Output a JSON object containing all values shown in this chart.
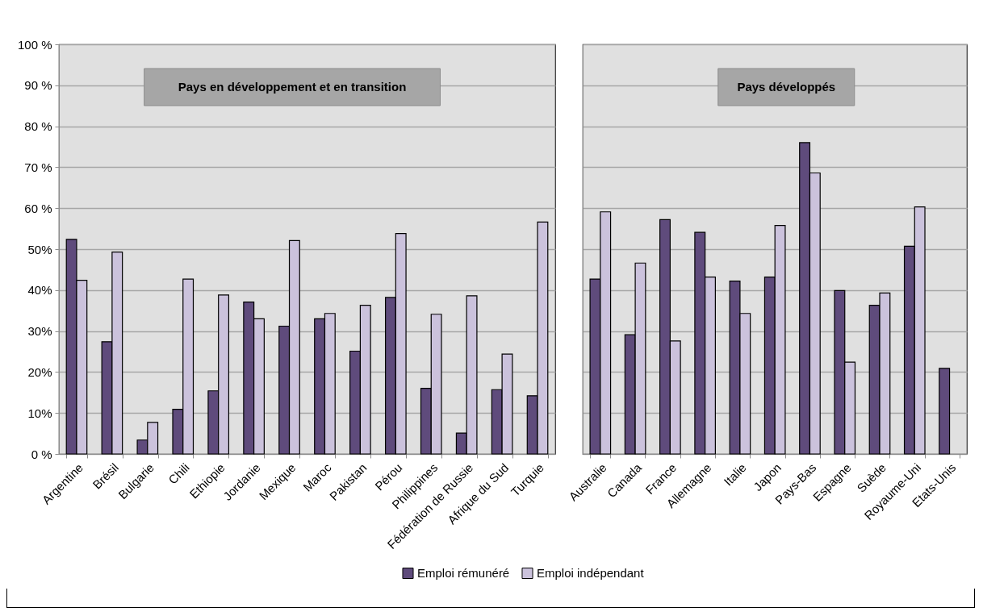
{
  "chart_data": [
    {
      "type": "bar",
      "categories": [
        "Argentine",
        "Brésil",
        "Bulgarie",
        "Chili",
        "Ethiopie",
        "Jordanie",
        "Mexique",
        "Maroc",
        "Pakistan",
        "Pérou",
        "Philippines",
        "Fédération de Russie",
        "Afrique du Sud",
        "Turquie"
      ],
      "series": [
        {
          "name": "Emploi rémunéré",
          "color": "#5f4b7c",
          "values": [
            52.4,
            27.4,
            3.4,
            10.9,
            15.4,
            37.1,
            31.2,
            33.0,
            25.1,
            38.2,
            16.0,
            5.1,
            15.7,
            14.2
          ]
        },
        {
          "name": "Emploi indépendant",
          "color": "#cbc2dc",
          "values": [
            42.4,
            49.3,
            7.7,
            42.7,
            38.8,
            33.0,
            52.1,
            34.3,
            36.3,
            53.8,
            34.1,
            38.6,
            24.4,
            56.6
          ]
        }
      ],
      "ylim": [
        0,
        100
      ],
      "yticks": [
        {
          "value": 0,
          "label": "0 %"
        },
        {
          "value": 10,
          "label": "10%"
        },
        {
          "value": 20,
          "label": "20%"
        },
        {
          "value": 30,
          "label": "30%"
        },
        {
          "value": 40,
          "label": "40%"
        },
        {
          "value": 50,
          "label": "50%"
        },
        {
          "value": 60,
          "label": "60 %"
        },
        {
          "value": 70,
          "label": "70 %"
        },
        {
          "value": 80,
          "label": "80 %"
        },
        {
          "value": 90,
          "label": "90 %"
        },
        {
          "value": 100,
          "label": "100 %"
        }
      ],
      "grid": "y",
      "legend": "bottom",
      "annotations": [
        "Pays en développement et en transition"
      ]
    },
    {
      "type": "bar",
      "categories": [
        "Australie",
        "Canada",
        "France",
        "Allemagne",
        "Italie",
        "Japon",
        "Pays-Bas",
        "Espagne",
        "Suède",
        "Royaume-Uni",
        "Etats-Unis"
      ],
      "series": [
        {
          "name": "Emploi rémunéré",
          "color": "#5f4b7c",
          "values": [
            42.7,
            29.1,
            57.2,
            54.1,
            42.2,
            43.2,
            76.0,
            39.9,
            36.3,
            50.7,
            20.9
          ]
        },
        {
          "name": "Emploi indépendant",
          "color": "#cbc2dc",
          "values": [
            59.1,
            46.6,
            27.6,
            43.2,
            34.3,
            55.8,
            68.6,
            22.4,
            39.3,
            60.3,
            null
          ]
        }
      ],
      "ylim": [
        0,
        100
      ],
      "yticks": [
        0,
        10,
        20,
        30,
        40,
        50,
        60,
        70,
        80,
        90,
        100
      ],
      "grid": "y",
      "legend": "bottom",
      "tick_labels": "x",
      "annotations": [
        "Pays développés"
      ]
    }
  ]
}
